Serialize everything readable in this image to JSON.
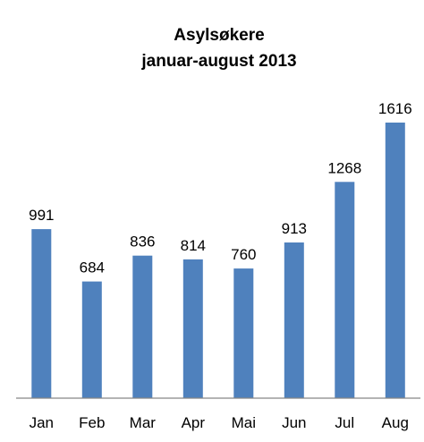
{
  "chart_data": {
    "type": "bar",
    "title_lines": [
      "Asylsøkere",
      "januar-august 2013"
    ],
    "categories": [
      "Jan",
      "Feb",
      "Mar",
      "Apr",
      "Mai",
      "Jun",
      "Jul",
      "Aug"
    ],
    "values": [
      991,
      684,
      836,
      814,
      760,
      913,
      1268,
      1616
    ],
    "ylim": [
      0,
      1616
    ],
    "grid": false,
    "legend": "none",
    "bar_color": "#4f81bd",
    "axis_color": "#868686"
  }
}
